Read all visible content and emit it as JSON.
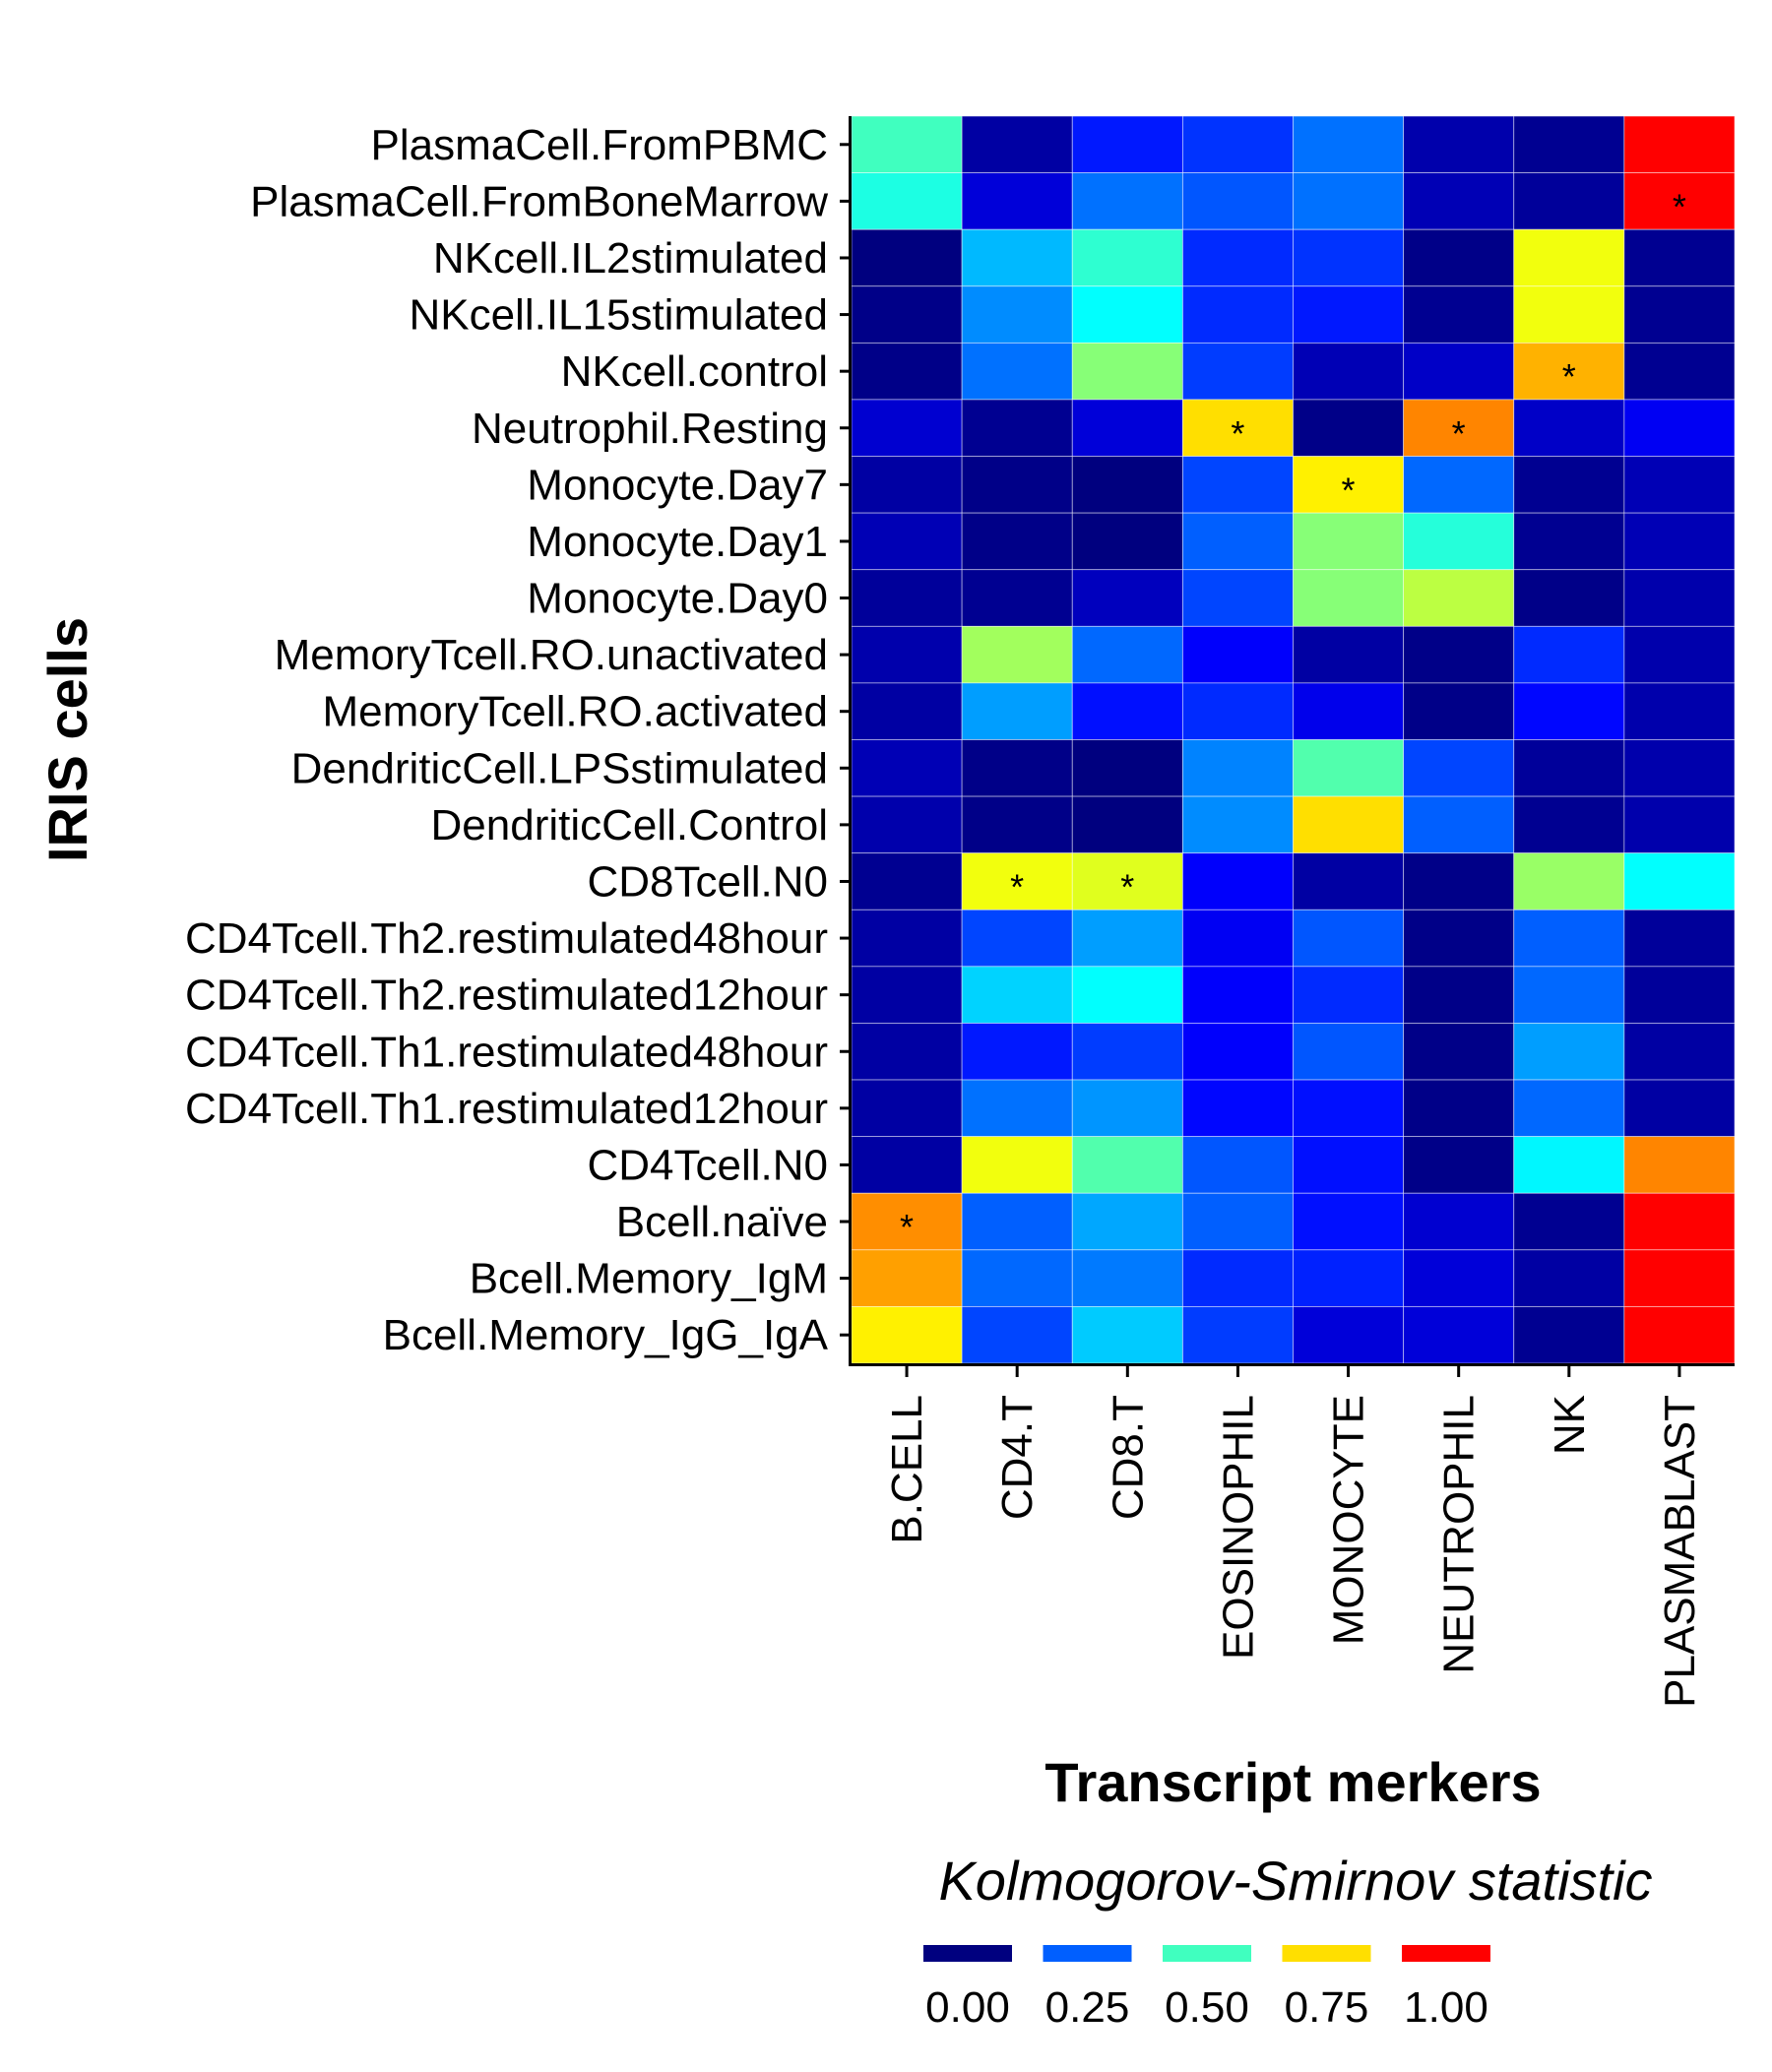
{
  "chart_data": {
    "type": "heatmap",
    "xlabel": "Transcript merkers",
    "ylabel": "IRIS cells",
    "columns": [
      "B.CELL",
      "CD4.T",
      "CD8.T",
      "EOSINOPHIL",
      "MONOCYTE",
      "NEUTROPHIL",
      "NK",
      "PLASMABLAST"
    ],
    "rows": [
      "PlasmaCell.FromPBMC",
      "PlasmaCell.FromBoneMarrow",
      "NKcell.IL2stimulated",
      "NKcell.IL15stimulated",
      "NKcell.control",
      "Neutrophil.Resting",
      "Monocyte.Day7",
      "Monocyte.Day1",
      "Monocyte.Day0",
      "MemoryTcell.RO.unactivated",
      "MemoryTcell.RO.activated",
      "DendriticCell.LPSstimulated",
      "DendriticCell.Control",
      "CD8Tcell.N0",
      "CD4Tcell.Th2.restimulated48hour",
      "CD4Tcell.Th2.restimulated12hour",
      "CD4Tcell.Th1.restimulated48hour",
      "CD4Tcell.Th1.restimulated12hour",
      "CD4Tcell.N0",
      "Bcell.naïve",
      "Bcell.Memory_IgM",
      "Bcell.Memory_IgG_IgA"
    ],
    "values": [
      [
        0.5,
        0.04,
        0.17,
        0.2,
        0.27,
        0.05,
        0.02,
        1.0
      ],
      [
        0.46,
        0.1,
        0.27,
        0.24,
        0.27,
        0.06,
        0.03,
        1.0
      ],
      [
        0.0,
        0.35,
        0.48,
        0.19,
        0.2,
        0.01,
        0.7,
        0.02
      ],
      [
        0.01,
        0.3,
        0.43,
        0.19,
        0.17,
        0.02,
        0.7,
        0.02
      ],
      [
        0.01,
        0.27,
        0.58,
        0.21,
        0.06,
        0.08,
        0.8,
        0.02
      ],
      [
        0.09,
        0.02,
        0.1,
        0.75,
        0.01,
        0.85,
        0.08,
        0.13
      ],
      [
        0.04,
        0.01,
        0.0,
        0.22,
        0.73,
        0.26,
        0.02,
        0.06
      ],
      [
        0.06,
        0.01,
        0.0,
        0.25,
        0.58,
        0.47,
        0.02,
        0.06
      ],
      [
        0.03,
        0.02,
        0.07,
        0.22,
        0.58,
        0.64,
        0.01,
        0.05
      ],
      [
        0.05,
        0.61,
        0.26,
        0.14,
        0.04,
        0.01,
        0.19,
        0.05
      ],
      [
        0.04,
        0.32,
        0.16,
        0.19,
        0.12,
        0.01,
        0.15,
        0.05
      ],
      [
        0.06,
        0.01,
        0.0,
        0.29,
        0.52,
        0.22,
        0.03,
        0.05
      ],
      [
        0.05,
        0.01,
        0.0,
        0.3,
        0.75,
        0.25,
        0.02,
        0.05
      ],
      [
        0.02,
        0.7,
        0.68,
        0.14,
        0.04,
        0.01,
        0.6,
        0.43
      ],
      [
        0.04,
        0.22,
        0.32,
        0.13,
        0.24,
        0.01,
        0.25,
        0.03
      ],
      [
        0.04,
        0.38,
        0.43,
        0.14,
        0.19,
        0.01,
        0.26,
        0.03
      ],
      [
        0.04,
        0.17,
        0.21,
        0.14,
        0.24,
        0.01,
        0.32,
        0.04
      ],
      [
        0.04,
        0.27,
        0.31,
        0.15,
        0.16,
        0.01,
        0.26,
        0.04
      ],
      [
        0.04,
        0.7,
        0.52,
        0.24,
        0.16,
        0.01,
        0.42,
        0.85
      ],
      [
        0.84,
        0.25,
        0.33,
        0.25,
        0.16,
        0.09,
        0.02,
        1.0
      ],
      [
        0.82,
        0.26,
        0.28,
        0.19,
        0.18,
        0.1,
        0.04,
        1.0
      ],
      [
        0.73,
        0.22,
        0.37,
        0.21,
        0.1,
        0.1,
        0.02,
        1.0
      ]
    ],
    "significant": [
      [
        "PlasmaCell.FromBoneMarrow",
        "PLASMABLAST"
      ],
      [
        "NKcell.control",
        "NK"
      ],
      [
        "Neutrophil.Resting",
        "EOSINOPHIL"
      ],
      [
        "Neutrophil.Resting",
        "NEUTROPHIL"
      ],
      [
        "Monocyte.Day7",
        "MONOCYTE"
      ],
      [
        "CD8Tcell.N0",
        "CD4.T"
      ],
      [
        "CD8Tcell.N0",
        "CD8.T"
      ],
      [
        "Bcell.naïve",
        "B.CELL"
      ]
    ],
    "significance_marker": "*",
    "color_scale": {
      "name": "jet",
      "range": [
        0,
        1
      ],
      "stops": [
        "#00007F",
        "#0000FF",
        "#007FFF",
        "#00FFFF",
        "#7FFF7F",
        "#FFFF00",
        "#FF7F00",
        "#FF0000"
      ]
    },
    "legend": {
      "title": "Kolmogorov-Smirnov statistic",
      "position": "bottom",
      "breaks": [
        "0.00",
        "0.25",
        "0.50",
        "0.75",
        "1.00"
      ],
      "break_values": [
        0,
        0.25,
        0.5,
        0.75,
        1.0
      ]
    }
  }
}
